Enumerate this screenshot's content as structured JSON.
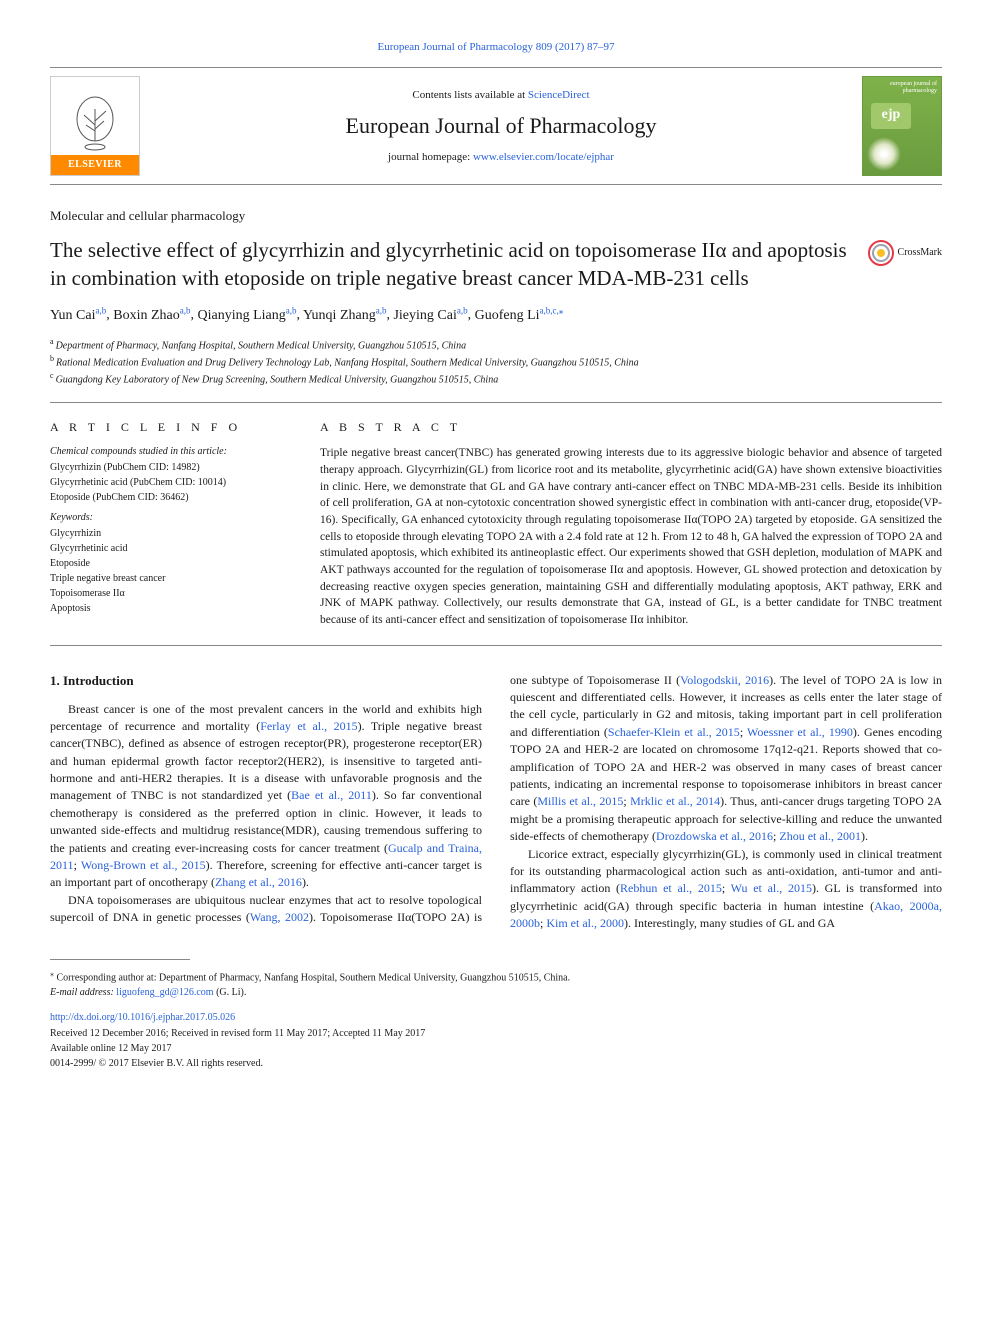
{
  "citation_header": "European Journal of Pharmacology 809 (2017) 87–97",
  "masthead": {
    "contents_prefix": "Contents lists available at ",
    "contents_link": "ScienceDirect",
    "journal_name": "European Journal of Pharmacology",
    "homepage_prefix": "journal homepage: ",
    "homepage_link": "www.elsevier.com/locate/ejphar",
    "publisher_brand": "ELSEVIER",
    "cover_top": "european journal of pharmacology",
    "cover_badge": "ejp"
  },
  "section_label": "Molecular and cellular pharmacology",
  "title": "The selective effect of glycyrrhizin and glycyrrhetinic acid on topoisomerase IIα and apoptosis in combination with etoposide on triple negative breast cancer MDA-MB-231 cells",
  "crossmark_label": "CrossMark",
  "authors": [
    {
      "name": "Yun Cai",
      "sup": "a,b"
    },
    {
      "name": "Boxin Zhao",
      "sup": "a,b"
    },
    {
      "name": "Qianying Liang",
      "sup": "a,b"
    },
    {
      "name": "Yunqi Zhang",
      "sup": "a,b"
    },
    {
      "name": "Jieying Cai",
      "sup": "a,b"
    },
    {
      "name": "Guofeng Li",
      "sup": "a,b,c,⁎"
    }
  ],
  "affiliations": [
    {
      "mark": "a",
      "text": "Department of Pharmacy, Nanfang Hospital, Southern Medical University, Guangzhou 510515, China"
    },
    {
      "mark": "b",
      "text": "Rational Medication Evaluation and Drug Delivery Technology Lab, Nanfang Hospital, Southern Medical University, Guangzhou 510515, China"
    },
    {
      "mark": "c",
      "text": "Guangdong Key Laboratory of New Drug Screening, Southern Medical University, Guangzhou 510515, China"
    }
  ],
  "article_info": {
    "heading": "A R T I C L E  I N F O",
    "compounds_label": "Chemical compounds studied in this article:",
    "compounds": [
      "Glycyrrhizin (PubChem CID: 14982)",
      "Glycyrrhetinic acid (PubChem CID: 10014)",
      "Etoposide (PubChem CID: 36462)"
    ],
    "keywords_label": "Keywords:",
    "keywords": [
      "Glycyrrhizin",
      "Glycyrrhetinic acid",
      "Etoposide",
      "Triple negative breast cancer",
      "Topoisomerase IIα",
      "Apoptosis"
    ]
  },
  "abstract": {
    "heading": "A B S T R A C T",
    "text": "Triple negative breast cancer(TNBC) has generated growing interests due to its aggressive biologic behavior and absence of targeted therapy approach. Glycyrrhizin(GL) from licorice root and its metabolite, glycyrrhetinic acid(GA) have shown extensive bioactivities in clinic. Here, we demonstrate that GL and GA have contrary anti-cancer effect on TNBC MDA-MB-231 cells. Beside its inhibition of cell proliferation, GA at non-cytotoxic concentration showed synergistic effect in combination with anti-cancer drug, etoposide(VP-16). Specifically, GA enhanced cytotoxicity through regulating topoisomerase IIα(TOPO 2A) targeted by etoposide. GA sensitized the cells to etoposide through elevating TOPO 2A with a 2.4 fold rate at 12 h. From 12 to 48 h, GA halved the expression of TOPO 2A and stimulated apoptosis, which exhibited its antineoplastic effect. Our experiments showed that GSH depletion, modulation of MAPK and AKT pathways accounted for the regulation of topoisomerase IIα and apoptosis. However, GL showed protection and detoxication by decreasing reactive oxygen species generation, maintaining GSH and differentially modulating apoptosis, AKT pathway, ERK and JNK of MAPK pathway. Collectively, our results demonstrate that GA, instead of GL, is a better candidate for TNBC treatment because of its anti-cancer effect and sensitization of topoisomerase IIα inhibitor."
  },
  "body": {
    "intro_heading": "1. Introduction",
    "paragraphs": [
      {
        "segments": [
          {
            "t": "Breast cancer is one of the most prevalent cancers in the world and exhibits high percentage of recurrence and mortality ("
          },
          {
            "t": "Ferlay et al., 2015",
            "link": true
          },
          {
            "t": "). Triple negative breast cancer(TNBC), defined as absence of estrogen receptor(PR), progesterone receptor(ER) and human epidermal growth factor receptor2(HER2), is insensitive to targeted anti-hormone and anti-HER2 therapies. It is a disease with unfavorable prognosis and the management of TNBC is not standardized yet ("
          },
          {
            "t": "Bae et al., 2011",
            "link": true
          },
          {
            "t": "). So far conventional chemotherapy is considered as the preferred option in clinic. However, it leads to unwanted side-effects and multidrug resistance(MDR), causing tremendous suffering to the patients and creating ever-increasing costs for cancer treatment ("
          },
          {
            "t": "Gucalp and Traina, 2011",
            "link": true
          },
          {
            "t": "; "
          },
          {
            "t": "Wong-Brown et al., 2015",
            "link": true
          },
          {
            "t": "). Therefore, screening for effective anti-cancer target is an important part of oncotherapy ("
          },
          {
            "t": "Zhang et al., 2016",
            "link": true
          },
          {
            "t": ")."
          }
        ]
      },
      {
        "segments": [
          {
            "t": "DNA topoisomerases are ubiquitous nuclear enzymes that act to resolve topological supercoil of DNA in genetic processes ("
          },
          {
            "t": "Wang, 2002",
            "link": true
          },
          {
            "t": "). Topoisomerase IIα(TOPO 2A) is one subtype of Topoisomerase II ("
          },
          {
            "t": "Vologodskii, 2016",
            "link": true
          },
          {
            "t": "). The level of TOPO 2A is low in quiescent and differentiated cells. However, it increases as cells enter the later stage of the cell cycle, particularly in G2 and mitosis, taking important part in cell proliferation and differentiation ("
          },
          {
            "t": "Schaefer-Klein et al., 2015",
            "link": true
          },
          {
            "t": "; "
          },
          {
            "t": "Woessner et al., 1990",
            "link": true
          },
          {
            "t": "). Genes encoding TOPO 2A and HER-2 are located on chromosome 17q12-q21. Reports showed that co-amplification of TOPO 2A and HER-2 was observed in many cases of breast cancer patients, indicating an incremental response to topoisomerase inhibitors in breast cancer care ("
          },
          {
            "t": "Millis et al., 2015",
            "link": true
          },
          {
            "t": "; "
          },
          {
            "t": "Mrklic et al., 2014",
            "link": true
          },
          {
            "t": "). Thus, anti-cancer drugs targeting TOPO 2A might be a promising therapeutic approach for selective-killing and reduce the unwanted side-effects of chemotherapy ("
          },
          {
            "t": "Drozdowska et al., 2016",
            "link": true
          },
          {
            "t": "; "
          },
          {
            "t": "Zhou et al., 2001",
            "link": true
          },
          {
            "t": ")."
          }
        ]
      },
      {
        "segments": [
          {
            "t": "Licorice extract, especially glycyrrhizin(GL), is commonly used in clinical treatment for its outstanding pharmacological action such as anti-oxidation, anti-tumor and anti-inflammatory action ("
          },
          {
            "t": "Rebhun et al., 2015",
            "link": true
          },
          {
            "t": "; "
          },
          {
            "t": "Wu et al., 2015",
            "link": true
          },
          {
            "t": "). GL is transformed into glycyrrhetinic acid(GA) through specific bacteria in human intestine ("
          },
          {
            "t": "Akao, 2000a, 2000b",
            "link": true
          },
          {
            "t": "; "
          },
          {
            "t": "Kim et al., 2000",
            "link": true
          },
          {
            "t": "). Interestingly, many studies of GL and GA"
          }
        ]
      }
    ]
  },
  "footnote": {
    "corresponding_mark": "⁎",
    "corresponding_text": "Corresponding author at: Department of Pharmacy, Nanfang Hospital, Southern Medical University, Guangzhou 510515, China.",
    "email_label": "E-mail address: ",
    "email": "liguofeng_gd@126.com",
    "email_suffix": " (G. Li)."
  },
  "pub_info": {
    "doi": "http://dx.doi.org/10.1016/j.ejphar.2017.05.026",
    "received": "Received 12 December 2016; Received in revised form 11 May 2017; Accepted 11 May 2017",
    "available": "Available online 12 May 2017",
    "copyright": "0014-2999/ © 2017 Elsevier B.V. All rights reserved."
  },
  "colors": {
    "link": "#2962d9",
    "elsevier_orange": "#ff8a00",
    "cover_green": "#6a9b3f",
    "crossmark_outer": "#e63946",
    "crossmark_inner": "#fbbf24",
    "crossmark_mid": "#9ca3af"
  }
}
